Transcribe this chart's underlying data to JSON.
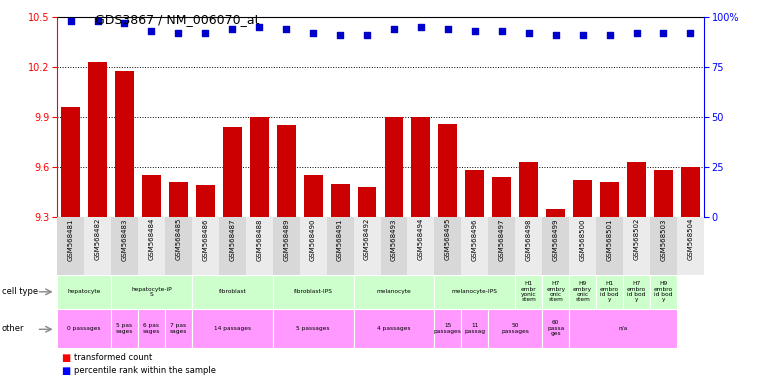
{
  "title": "GDS3867 / NM_006070_at",
  "samples": [
    "GSM568481",
    "GSM568482",
    "GSM568483",
    "GSM568484",
    "GSM568485",
    "GSM568486",
    "GSM568487",
    "GSM568488",
    "GSM568489",
    "GSM568490",
    "GSM568491",
    "GSM568492",
    "GSM568493",
    "GSM568494",
    "GSM568495",
    "GSM568496",
    "GSM568497",
    "GSM568498",
    "GSM568499",
    "GSM568500",
    "GSM568501",
    "GSM568502",
    "GSM568503",
    "GSM568504"
  ],
  "bar_values": [
    9.96,
    10.23,
    10.18,
    9.55,
    9.51,
    9.49,
    9.84,
    9.9,
    9.85,
    9.55,
    9.5,
    9.48,
    9.9,
    9.9,
    9.86,
    9.58,
    9.54,
    9.63,
    9.35,
    9.52,
    9.51,
    9.63,
    9.58,
    9.6
  ],
  "percentile_values": [
    98,
    98,
    97,
    93,
    92,
    92,
    94,
    95,
    94,
    92,
    91,
    91,
    94,
    95,
    94,
    93,
    93,
    92,
    91,
    91,
    91,
    92,
    92,
    92
  ],
  "ylim_left": [
    9.3,
    10.5
  ],
  "ylim_right": [
    0,
    100
  ],
  "yticks_left": [
    9.3,
    9.6,
    9.9,
    10.2,
    10.5
  ],
  "yticks_right": [
    0,
    25,
    50,
    75,
    100
  ],
  "bar_color": "#cc0000",
  "dot_color": "#0000cc",
  "cell_type_data": [
    {
      "label": "hepatocyte",
      "start": 0,
      "end": 1,
      "color": "#ccffcc"
    },
    {
      "label": "hepatocyte-iP\nS",
      "start": 2,
      "end": 4,
      "color": "#ccffcc"
    },
    {
      "label": "fibroblast",
      "start": 5,
      "end": 7,
      "color": "#ccffcc"
    },
    {
      "label": "fibroblast-IPS",
      "start": 8,
      "end": 10,
      "color": "#ccffcc"
    },
    {
      "label": "melanocyte",
      "start": 11,
      "end": 13,
      "color": "#ccffcc"
    },
    {
      "label": "melanocyte-IPS",
      "start": 14,
      "end": 16,
      "color": "#ccffcc"
    },
    {
      "label": "H1\nembr\nyonic\nstem",
      "start": 17,
      "end": 17,
      "color": "#ccffcc"
    },
    {
      "label": "H7\nembry\nonic\nstem",
      "start": 18,
      "end": 18,
      "color": "#ccffcc"
    },
    {
      "label": "H9\nembry\nonic\nstem",
      "start": 19,
      "end": 19,
      "color": "#ccffcc"
    },
    {
      "label": "H1\nembro\nid bod\ny",
      "start": 20,
      "end": 20,
      "color": "#ccffcc"
    },
    {
      "label": "H7\nembro\nid bod\ny",
      "start": 21,
      "end": 21,
      "color": "#ccffcc"
    },
    {
      "label": "H9\nembro\nid bod\ny",
      "start": 22,
      "end": 22,
      "color": "#ccffcc"
    }
  ],
  "other_data": [
    {
      "label": "0 passages",
      "start": 0,
      "end": 1,
      "color": "#ff99ff"
    },
    {
      "label": "5 pas\nsages",
      "start": 2,
      "end": 2,
      "color": "#ff99ff"
    },
    {
      "label": "6 pas\nsages",
      "start": 3,
      "end": 3,
      "color": "#ff99ff"
    },
    {
      "label": "7 pas\nsages",
      "start": 4,
      "end": 4,
      "color": "#ff99ff"
    },
    {
      "label": "14 passages",
      "start": 5,
      "end": 7,
      "color": "#ff99ff"
    },
    {
      "label": "5 passages",
      "start": 8,
      "end": 10,
      "color": "#ff99ff"
    },
    {
      "label": "4 passages",
      "start": 11,
      "end": 13,
      "color": "#ff99ff"
    },
    {
      "label": "15\npassages",
      "start": 14,
      "end": 14,
      "color": "#ff99ff"
    },
    {
      "label": "11\npassag",
      "start": 15,
      "end": 15,
      "color": "#ff99ff"
    },
    {
      "label": "50\npassages",
      "start": 16,
      "end": 17,
      "color": "#ff99ff"
    },
    {
      "label": "60\npassa\nges",
      "start": 18,
      "end": 18,
      "color": "#ff99ff"
    },
    {
      "label": "n/a",
      "start": 19,
      "end": 22,
      "color": "#ff99ff"
    }
  ],
  "fig_width": 7.61,
  "fig_height": 3.84,
  "dpi": 100
}
